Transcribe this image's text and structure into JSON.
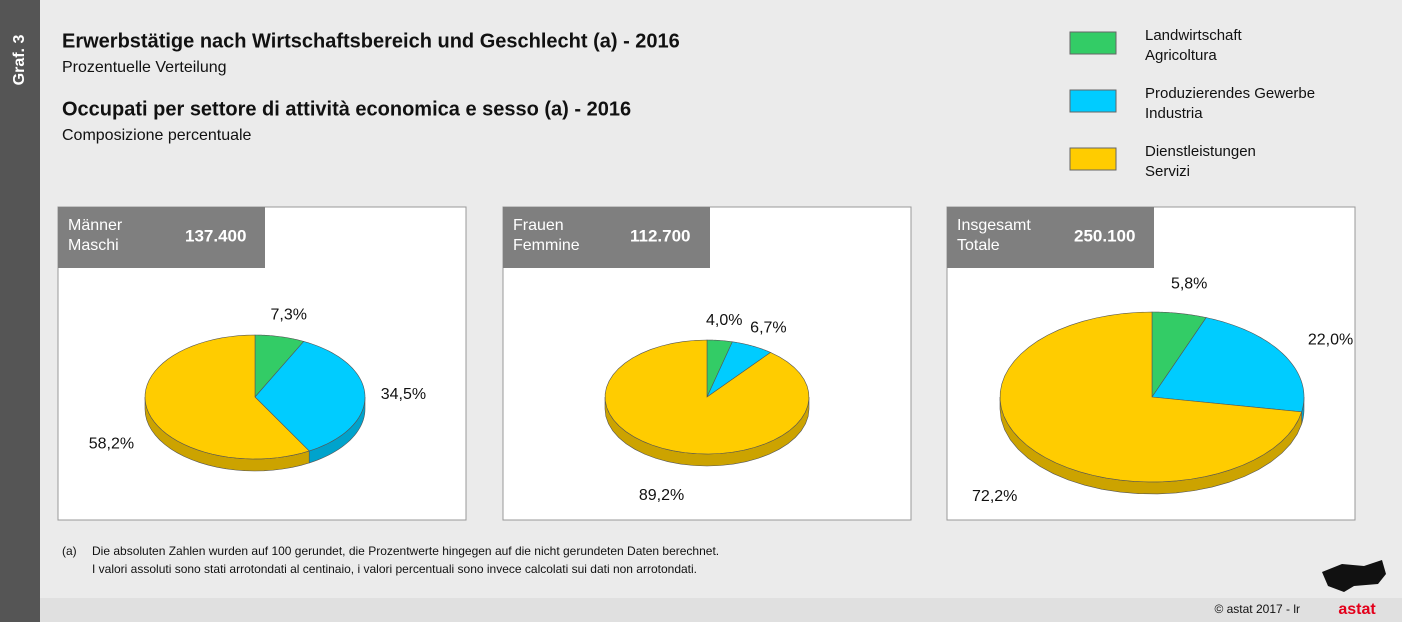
{
  "graf": "Graf. 3",
  "title_de": "Erwerbstätige nach Wirtschaftsbereich und Geschlecht (a) - 2016",
  "subtitle_de": "Prozentuelle Verteilung",
  "title_it": "Occupati per settore di attività economica e sesso (a) - 2016",
  "subtitle_it": "Composizione percentuale",
  "legend": [
    {
      "label_de": "Landwirtschaft",
      "label_it": "Agricoltura",
      "color": "#33cc66"
    },
    {
      "label_de": "Produzierendes Gewerbe",
      "label_it": "Industria",
      "color": "#00ccff"
    },
    {
      "label_de": "Dienstleistungen",
      "label_it": "Servizi",
      "color": "#ffcc00"
    }
  ],
  "chart_data": [
    {
      "type": "pie",
      "title_de": "Männer",
      "title_it": "Maschi",
      "total": "137.400",
      "values": [
        7.3,
        34.5,
        58.2
      ],
      "value_labels": [
        "7,3%",
        "34,5%",
        "58,2%"
      ]
    },
    {
      "type": "pie",
      "title_de": "Frauen",
      "title_it": "Femmine",
      "total": "112.700",
      "values": [
        4.0,
        6.7,
        89.2
      ],
      "value_labels": [
        "4,0%",
        "6,7%",
        "89,2%"
      ]
    },
    {
      "type": "pie",
      "title_de": "Insgesamt",
      "title_it": "Totale",
      "total": "250.100",
      "values": [
        5.8,
        22.0,
        72.2
      ],
      "value_labels": [
        "5,8%",
        "22,0%",
        "72,2%"
      ]
    }
  ],
  "footnote": {
    "marker": "(a)",
    "lines": [
      "Die absoluten Zahlen wurden auf 100 gerundet, die Prozentwerte hingegen auf die nicht gerundeten Daten berechnet.",
      "I valori assoluti sono stati arrotondati al centinaio, i valori percentuali sono invece calcolati sui dati non arrotondati."
    ]
  },
  "copyright": "© astat 2017 - lr",
  "logo": "astat"
}
